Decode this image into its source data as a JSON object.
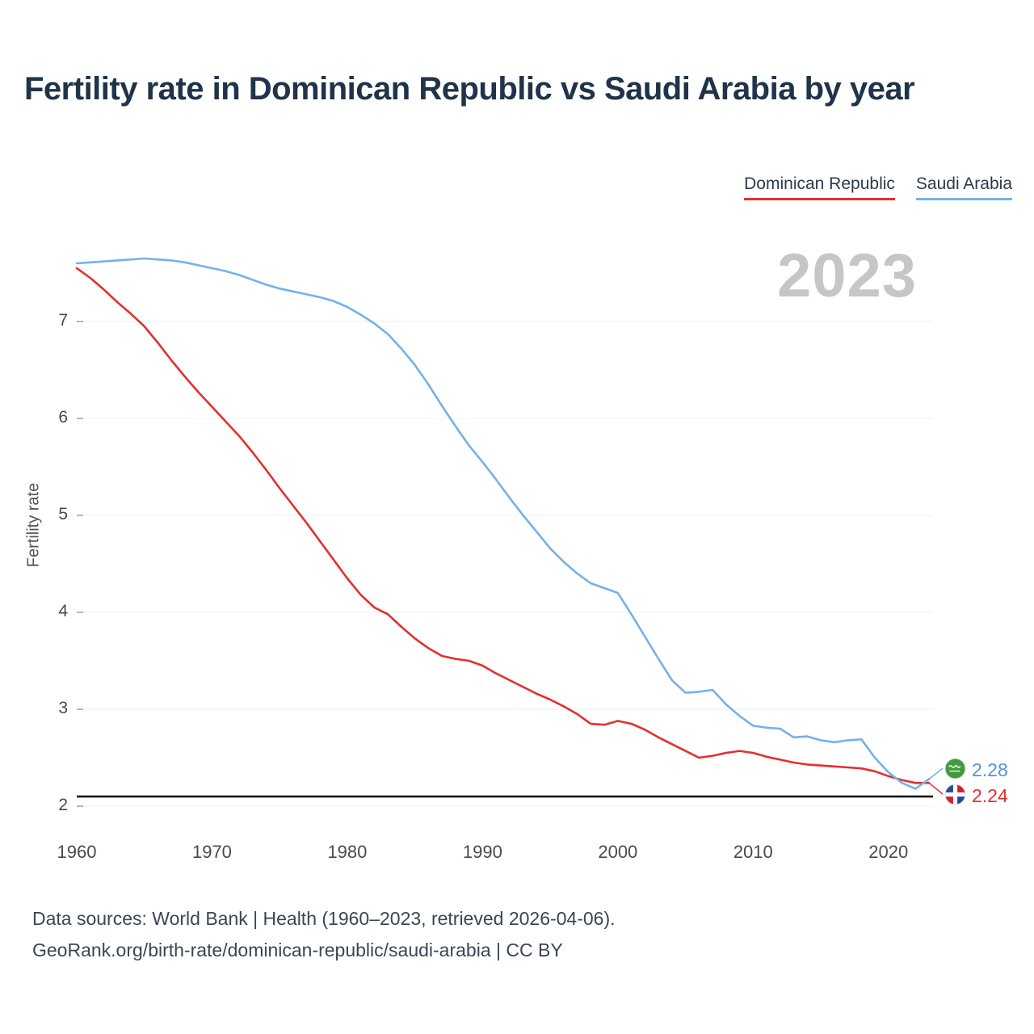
{
  "page": {
    "title": "Fertility rate in Dominican Republic vs Saudi Arabia by year",
    "watermark_year": "2023",
    "footer_line1": "Data sources: World Bank | Health (1960–2023, retrieved 2026-04-06).",
    "footer_line2": "GeoRank.org/birth-rate/dominican-republic/saudi-arabia | CC BY"
  },
  "legend": [
    {
      "label": "Dominican Republic",
      "color": "#e62e2e"
    },
    {
      "label": "Saudi Arabia",
      "color": "#74b2e8"
    }
  ],
  "end_labels": {
    "saudi_arabia": {
      "value": "2.28",
      "color": "#4e95d9"
    },
    "dominican_republic": {
      "value": "2.24",
      "color": "#e62e2e"
    }
  },
  "icons": {
    "saudi_arabia_flag": "saudi-arabia-flag-icon",
    "dominican_republic_flag": "dominican-republic-flag-icon"
  },
  "chart_data": {
    "type": "line",
    "title": "Fertility rate in Dominican Republic vs Saudi Arabia by year",
    "xlabel": "",
    "ylabel": "Fertility rate",
    "grid": true,
    "legend_position": "top-right",
    "ylim": [
      2,
      7.8
    ],
    "yticks": [
      2,
      3,
      4,
      5,
      6,
      7
    ],
    "xticks": [
      1960,
      1970,
      1980,
      1990,
      2000,
      2010,
      2020
    ],
    "reference_line": {
      "value": 2.1,
      "color": "#000000"
    },
    "x": [
      1960,
      1961,
      1962,
      1963,
      1964,
      1965,
      1966,
      1967,
      1968,
      1969,
      1970,
      1971,
      1972,
      1973,
      1974,
      1975,
      1976,
      1977,
      1978,
      1979,
      1980,
      1981,
      1982,
      1983,
      1984,
      1985,
      1986,
      1987,
      1988,
      1989,
      1990,
      1991,
      1992,
      1993,
      1994,
      1995,
      1996,
      1997,
      1998,
      1999,
      2000,
      2001,
      2002,
      2003,
      2004,
      2005,
      2006,
      2007,
      2008,
      2009,
      2010,
      2011,
      2012,
      2013,
      2014,
      2015,
      2016,
      2017,
      2018,
      2019,
      2020,
      2021,
      2022,
      2023
    ],
    "series": [
      {
        "name": "Dominican Republic",
        "color": "#e62e2e",
        "last_value_label": "2.24",
        "values": [
          7.55,
          7.45,
          7.33,
          7.2,
          7.08,
          6.95,
          6.78,
          6.6,
          6.43,
          6.27,
          6.12,
          5.97,
          5.82,
          5.65,
          5.47,
          5.28,
          5.1,
          4.92,
          4.73,
          4.54,
          4.35,
          4.18,
          4.05,
          3.98,
          3.85,
          3.73,
          3.63,
          3.55,
          3.52,
          3.5,
          3.45,
          3.37,
          3.3,
          3.23,
          3.16,
          3.1,
          3.03,
          2.95,
          2.85,
          2.84,
          2.88,
          2.85,
          2.79,
          2.71,
          2.64,
          2.57,
          2.5,
          2.52,
          2.55,
          2.57,
          2.55,
          2.51,
          2.48,
          2.45,
          2.43,
          2.42,
          2.41,
          2.4,
          2.39,
          2.36,
          2.31,
          2.27,
          2.24,
          2.24
        ]
      },
      {
        "name": "Saudi Arabia",
        "color": "#74b2e8",
        "last_value_label": "2.28",
        "values": [
          7.6,
          7.61,
          7.62,
          7.63,
          7.64,
          7.65,
          7.64,
          7.63,
          7.61,
          7.58,
          7.55,
          7.52,
          7.48,
          7.43,
          7.38,
          7.34,
          7.31,
          7.28,
          7.25,
          7.21,
          7.15,
          7.07,
          6.98,
          6.87,
          6.72,
          6.55,
          6.35,
          6.13,
          5.92,
          5.72,
          5.55,
          5.37,
          5.18,
          5.0,
          4.83,
          4.66,
          4.52,
          4.4,
          4.3,
          4.25,
          4.2,
          3.98,
          3.75,
          3.52,
          3.3,
          3.17,
          3.18,
          3.2,
          3.05,
          2.93,
          2.83,
          2.81,
          2.8,
          2.71,
          2.72,
          2.68,
          2.66,
          2.68,
          2.69,
          2.5,
          2.35,
          2.24,
          2.18,
          2.28
        ]
      }
    ]
  }
}
